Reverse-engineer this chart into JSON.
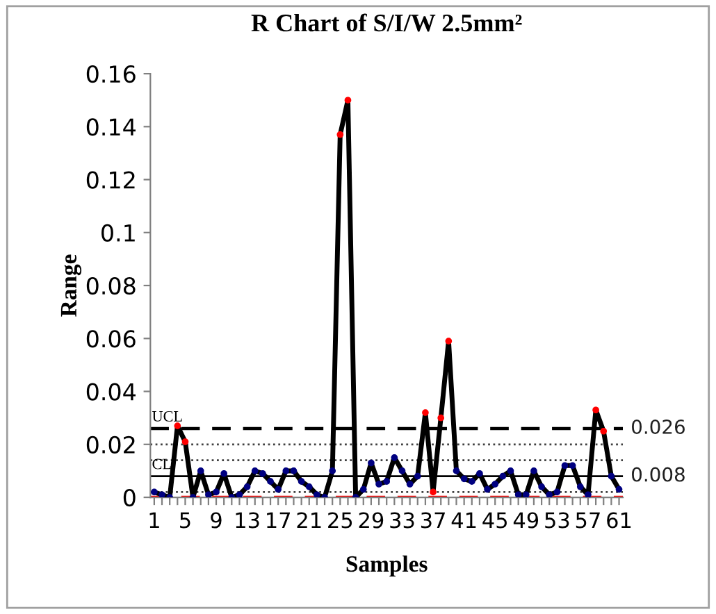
{
  "chart_data": {
    "type": "line",
    "title": "R Chart of S/I/W 2.5mm²",
    "xlabel": "Samples",
    "ylabel": "Range",
    "categories": [
      "1",
      null,
      null,
      null,
      "5",
      null,
      null,
      null,
      "9",
      null,
      null,
      null,
      "13",
      null,
      null,
      null,
      "17",
      null,
      null,
      null,
      "21",
      null,
      null,
      null,
      "25",
      null,
      null,
      null,
      "29",
      null,
      null,
      null,
      "33",
      null,
      null,
      null,
      "37",
      null,
      null,
      null,
      "41",
      null,
      null,
      null,
      "45",
      null,
      null,
      null,
      "49",
      null,
      null,
      null,
      "53",
      null,
      null,
      null,
      "57",
      null,
      null,
      null,
      "61"
    ],
    "series": [
      {
        "color": "#000000",
        "values": [
          0.002,
          0.001,
          0,
          0.027,
          0.021,
          0,
          0.01,
          0.001,
          0.002,
          0.009,
          0,
          0.001,
          0.004,
          0.01,
          0.009,
          0.006,
          0.003,
          0.01,
          0.01,
          0.006,
          0.004,
          0.001,
          0,
          0.01,
          0.137,
          0.15,
          0,
          0.003,
          0.013,
          0.005,
          0.006,
          0.015,
          0.01,
          0.005,
          0.008,
          0.032,
          0.002,
          0.03,
          0.059,
          0.01,
          0.007,
          0.006,
          0.009,
          0.003,
          0.005,
          0.008,
          0.01,
          0.001,
          0.001,
          0.01,
          0.004,
          0.001,
          0.002,
          0.012,
          0.012,
          0.004,
          0.001,
          0.033,
          0.025,
          0.008,
          0.003
        ],
        "colors": [
          "#000080",
          "#000080",
          "#000080",
          "#ff0000",
          "#ff0000",
          "#000080",
          "#000080",
          "#000080",
          "#000080",
          "#000080",
          "#000080",
          "#000080",
          "#000080",
          "#000080",
          "#000080",
          "#000080",
          "#000080",
          "#000080",
          "#000080",
          "#000080",
          "#000080",
          "#000080",
          "#000080",
          "#000080",
          "#ff0000",
          "#ff0000",
          "#000080",
          "#000080",
          "#000080",
          "#000080",
          "#000080",
          "#000080",
          "#000080",
          "#000080",
          "#000080",
          "#ff0000",
          "#ff0000",
          "#ff0000",
          "#ff0000",
          "#000080",
          "#000080",
          "#000080",
          "#000080",
          "#000080",
          "#000080",
          "#000080",
          "#000080",
          "#000080",
          "#000080",
          "#000080",
          "#000080",
          "#000080",
          "#000080",
          "#000080",
          "#000080",
          "#000080",
          "#000080",
          "#ff0000",
          "#ff0000",
          "#000080",
          "#000080"
        ]
      }
    ],
    "marker": "circle",
    "line_style": "solid",
    "ylim": [
      0,
      0.16
    ],
    "yticks": [
      0,
      0.02,
      0.04,
      0.06,
      {
        "value": 0.08,
        "label": "0.08"
      },
      {
        "value": 0.1,
        "label": "0.1"
      },
      0.12,
      0.14,
      0.16
    ],
    "ref_lines": [
      {
        "axis": "y",
        "value": 0.026,
        "label": "UCL",
        "color": "#000000",
        "line_style": "dashed"
      },
      {
        "axis": "y",
        "value": 0.008,
        "label": "CL",
        "color": "#000000",
        "line_style": "solid"
      },
      {
        "axis": "y",
        "value": 0.02,
        "color": "#404040",
        "line_style": "dotted"
      },
      {
        "axis": "y",
        "value": 0.014,
        "color": "#404040",
        "line_style": "dotted"
      },
      {
        "axis": "y",
        "value": 0.002,
        "color": "#404040",
        "line_style": "dotted"
      },
      {
        "axis": "y",
        "value": 0,
        "color": "#ff0000",
        "line_style": "dashed"
      }
    ],
    "annotations": [
      {
        "text": "0.026",
        "x": "61",
        "y": 0.026
      },
      {
        "text": "0.008",
        "x": "61",
        "y": 0.008
      }
    ],
    "grid": false,
    "legend": false
  }
}
